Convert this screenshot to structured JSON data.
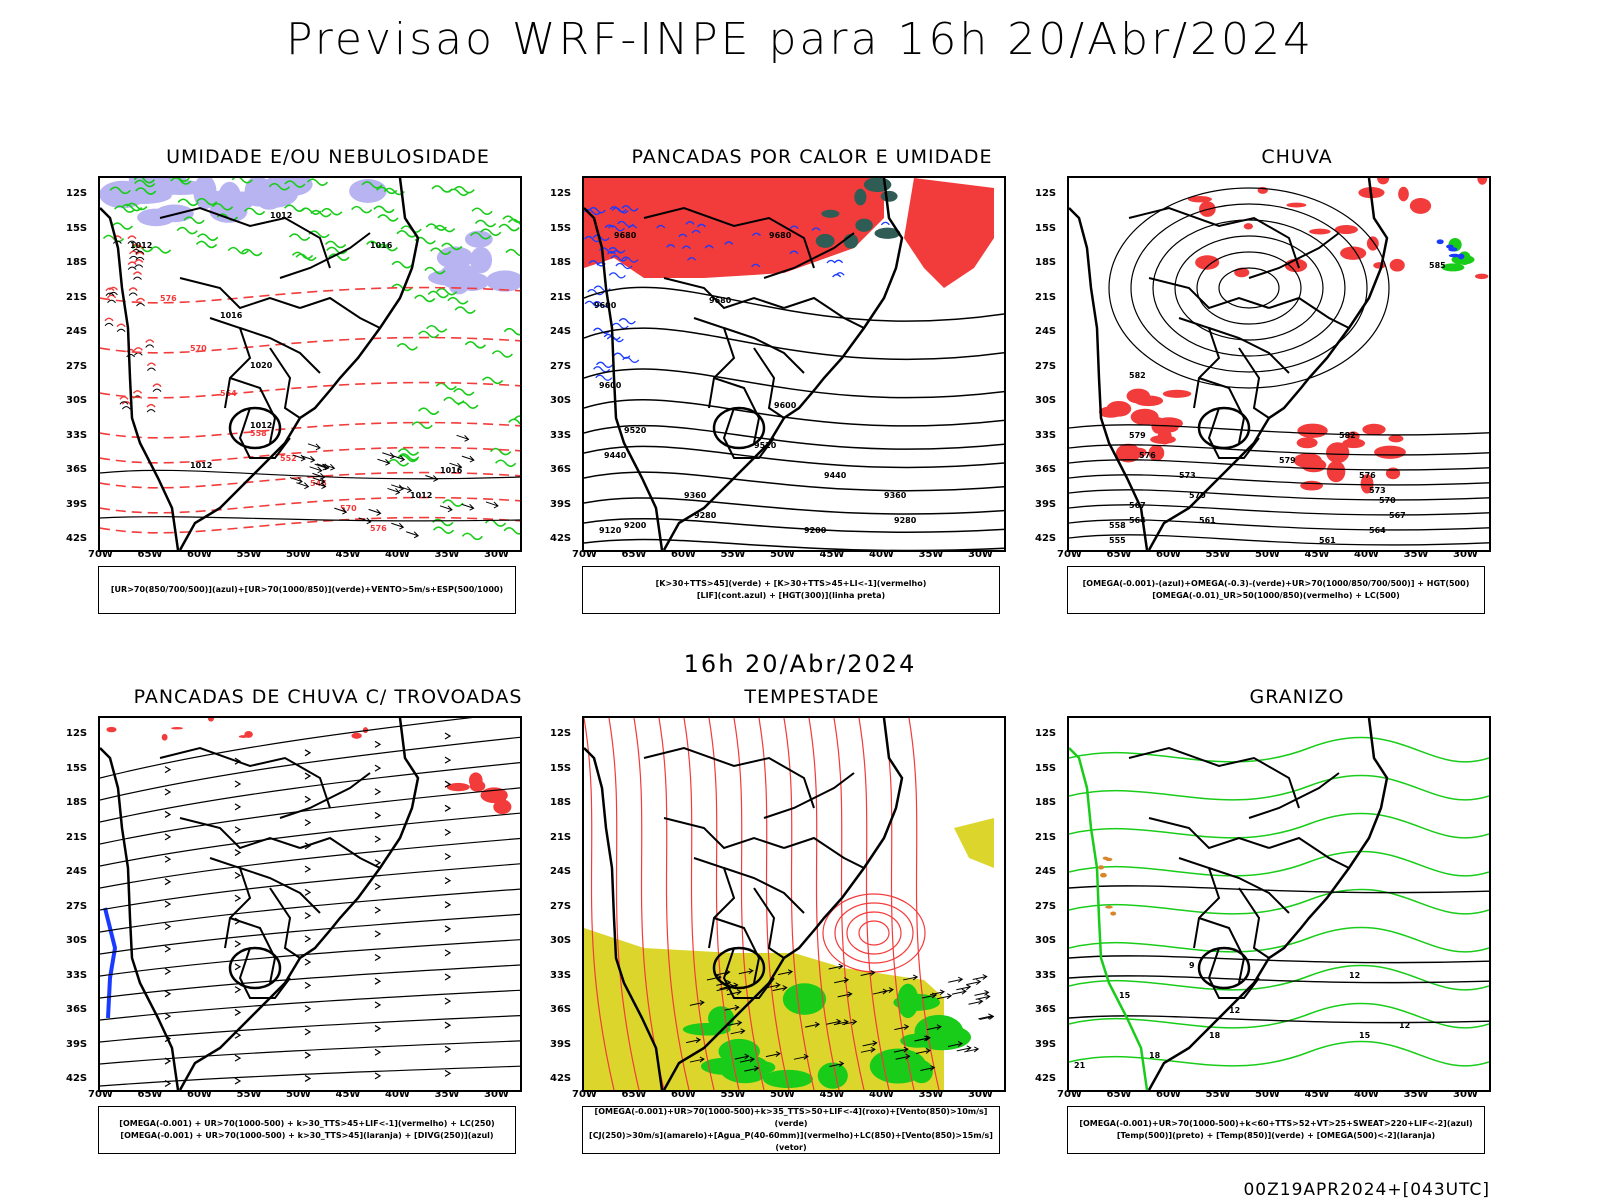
{
  "header": {
    "title": "Previsao WRF-INPE  para 16h 20/Abr/2024"
  },
  "mid_title": "16h 20/Abr/2024",
  "footer": "00Z19APR2024+[043UTC]",
  "axes": {
    "lat_labels": [
      "12S",
      "15S",
      "18S",
      "21S",
      "24S",
      "27S",
      "30S",
      "33S",
      "36S",
      "39S",
      "42S"
    ],
    "lon_labels": [
      "70W",
      "65W",
      "60W",
      "55W",
      "50W",
      "45W",
      "40W",
      "35W",
      "30W"
    ]
  },
  "panels": [
    {
      "title": "UMIDADE E/OU NEBULOSIDADE",
      "legend": [
        "[UR>70(850/700/500)](azul)+[UR>70(1000/850)](verde)+VENTO>5m/s+ESP(500/1000)"
      ],
      "isobars": [
        "1012",
        "1012",
        "1016",
        "1016",
        "1020",
        "1012",
        "1012",
        "1016",
        "1012"
      ],
      "thickness": [
        "576",
        "570",
        "564",
        "558",
        "552",
        "546",
        "570",
        "576"
      ]
    },
    {
      "title": "PANCADAS POR CALOR E UMIDADE",
      "legend": [
        "[K>30+TTS>45](verde)  +  [K>30+TTS>45+LI<-1](vermelho)",
        "[LIF](cont.azul)  +  [HGT(300)](linha preta)"
      ],
      "contours": [
        "9680",
        "9680",
        "9680",
        "9600",
        "9600",
        "9600",
        "9520",
        "9520",
        "9440",
        "9440",
        "9360",
        "9360",
        "9280",
        "9280",
        "9200",
        "9200",
        "9120"
      ]
    },
    {
      "title": "CHUVA",
      "legend": [
        "[OMEGA(-0.001)-(azul)+OMEGA(-0.3)-(verde)+UR>70(1000/850/700/500)]  +  HGT(500)",
        "[OMEGA(-0.01)_UR>50(1000/850)(vermelho)  +  LC(500)"
      ],
      "contours": [
        "585",
        "582",
        "579",
        "576",
        "573",
        "570",
        "567",
        "564",
        "561",
        "558",
        "555",
        "582",
        "579",
        "576",
        "573",
        "570",
        "567",
        "564",
        "561"
      ]
    },
    {
      "title": "PANCADAS DE CHUVA C/ TROVOADAS",
      "legend": [
        "[OMEGA(-0.001)  +  UR>70(1000-500)  +  k>30_TTS>45+LIF<-1](vermelho)  +  LC(250)",
        "[OMEGA(-0.001)  +  UR>70(1000-500)  +  k>30_TTS>45](laranja)  +  [DIVG(250)](azul)"
      ]
    },
    {
      "title": "TEMPESTADE",
      "legend": [
        "[OMEGA(-0.001)+UR>70(1000-500)+k>35_TTS>50+LIF<-4](roxo)+[Vento(850)>10m/s](verde)",
        "[CJ(250)>30m/s](amarelo)+[Agua_P(40-60mm)](vermelho)+LC(850)+[Vento(850)>15m/s](vetor)"
      ]
    },
    {
      "title": "GRANIZO",
      "legend": [
        "[OMEGA(-0.001)+UR>70(1000-500)+k<60+TTS>52+VT>25+SWEAT>220+LIF<-2](azul)",
        "[Temp(500)](preto)  +  [Temp(850)](verde)  +  [OMEGA(500)<-2](laranja)"
      ],
      "contours": [
        "12",
        "12",
        "15",
        "15",
        "18",
        "18",
        "21",
        "9",
        "12"
      ]
    }
  ],
  "colors": {
    "red": "#f23b3b",
    "green": "#19cc19",
    "blue": "#1a3bff",
    "lavender": "#b8b4f2",
    "yellow": "#dcd62c",
    "darkteal": "#2f5c55"
  }
}
